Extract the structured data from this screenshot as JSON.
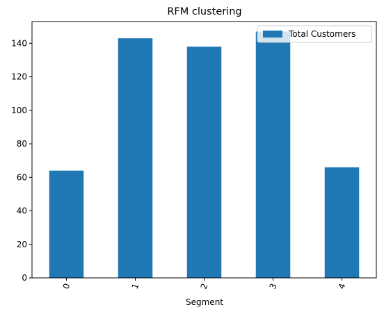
{
  "chart_data": {
    "type": "bar",
    "title": "RFM clustering",
    "xlabel": "Segment",
    "ylabel": "",
    "categories": [
      "0",
      "1",
      "2",
      "3",
      "4"
    ],
    "series": [
      {
        "name": "Total Customers",
        "values": [
          64,
          143,
          138,
          147,
          66
        ]
      }
    ],
    "ylim": [
      0,
      153
    ],
    "yticks": [
      0,
      20,
      40,
      60,
      80,
      100,
      120,
      140
    ],
    "legend_position": "top-right",
    "grid": false,
    "x_tick_rotation": "rotated",
    "colors": {
      "bar": "#1f77b4",
      "axes": "#000000",
      "background": "#ffffff"
    }
  }
}
